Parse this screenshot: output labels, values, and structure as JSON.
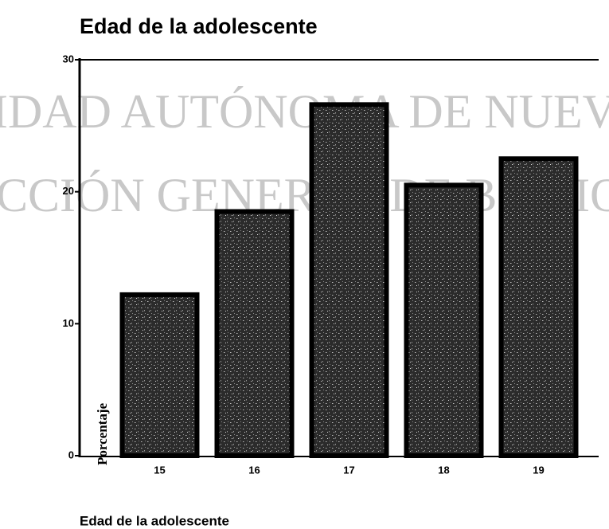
{
  "chart_data": {
    "type": "bar",
    "title": "Edad de la adolescente",
    "xlabel": "Edad de la adolescente",
    "ylabel": "Porcentaje",
    "watermark": [
      "IDAD AUTÓNOMA DE NUEVO",
      "CCIÓN GENERAL DE BIBLIOTECAS"
    ],
    "categories": [
      "15",
      "16",
      "17",
      "18",
      "19"
    ],
    "values": [
      12.2,
      18.5,
      26.6,
      20.5,
      22.5
    ],
    "color": "#2b2b2b",
    "ylim": [
      0,
      30
    ],
    "yticks": [
      0,
      10,
      20,
      30
    ],
    "grid": false
  }
}
